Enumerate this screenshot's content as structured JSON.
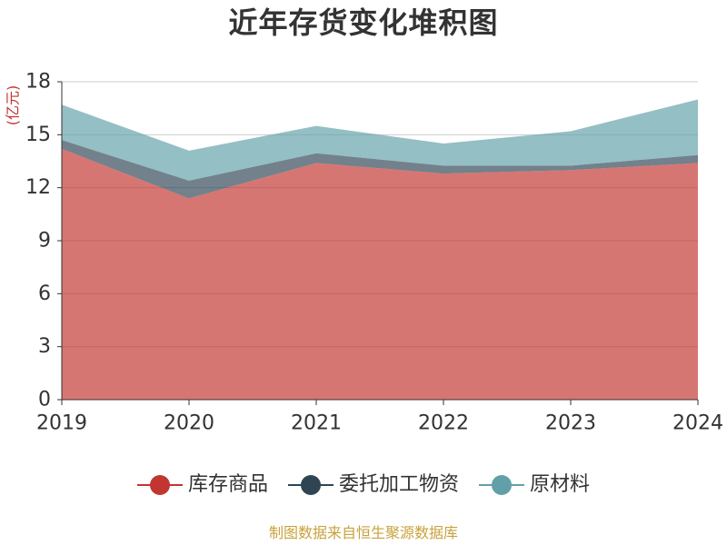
{
  "title": "近年存货变化堆积图",
  "source_text": "制图数据来自恒生聚源数据库",
  "chart_data": {
    "type": "area",
    "stacked": true,
    "title": "近年存货变化堆积图",
    "ylabel": "(亿元)",
    "xlabel": "",
    "ylim": [
      0,
      18
    ],
    "yticks": [
      0,
      3,
      6,
      9,
      12,
      15,
      18
    ],
    "x": [
      "2019",
      "2020",
      "2021",
      "2022",
      "2023",
      "2024"
    ],
    "grid": true,
    "legend_position": "bottom",
    "series": [
      {
        "name": "库存商品",
        "color": "#c23531",
        "values": [
          14.2,
          11.4,
          13.4,
          12.8,
          13.0,
          13.4
        ]
      },
      {
        "name": "委托加工物资",
        "color": "#2f4554",
        "values": [
          0.5,
          1.0,
          0.55,
          0.45,
          0.25,
          0.45
        ]
      },
      {
        "name": "原材料",
        "color": "#61a0a8",
        "values": [
          2.0,
          1.7,
          1.55,
          1.25,
          1.95,
          3.15
        ]
      }
    ]
  }
}
